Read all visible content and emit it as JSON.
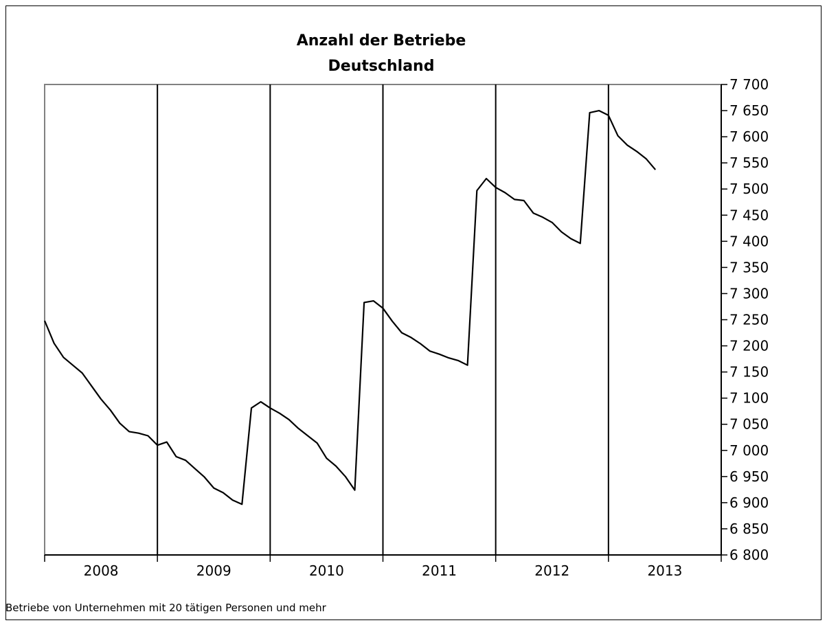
{
  "chart_data": {
    "type": "line",
    "title": "Anzahl der Betriebe",
    "subtitle": "Deutschland",
    "note": "Betriebe von Unternehmen mit 20 tätigen Personen und mehr",
    "xlabel": "",
    "ylabel": "",
    "ylim": [
      6800,
      7700
    ],
    "y_ticks": [
      "6 800",
      "6 850",
      "6 900",
      "6 950",
      "7 000",
      "7 050",
      "7 100",
      "7 150",
      "7 200",
      "7 250",
      "7 300",
      "7 350",
      "7 400",
      "7 450",
      "7 500",
      "7 550",
      "7 600",
      "7 650",
      "7 700"
    ],
    "y_axis_position": "right",
    "year_labels": [
      "2008",
      "2009",
      "2010",
      "2011",
      "2012",
      "2013"
    ],
    "months_per_year": 12,
    "grid": "vertical lines at each year boundary",
    "line_color": "#000000",
    "series": [
      {
        "values": [
          7248,
          7205,
          7178,
          7163,
          7148,
          7123,
          7098,
          7077,
          7052,
          7036,
          7033,
          7028,
          7010,
          7016,
          6988,
          6981,
          6965,
          6949,
          6928,
          6919,
          6905,
          6897,
          7081,
          7093,
          7081,
          7071,
          7059,
          7042,
          7028,
          7014,
          6985,
          6970,
          6950,
          6924,
          7283,
          7286,
          7272,
          7247,
          7225,
          7216,
          7204,
          7190,
          7184,
          7177,
          7172,
          7163,
          7497,
          7520,
          7503,
          7493,
          7480,
          7478,
          7454,
          7446,
          7436,
          7418,
          7405,
          7396,
          7646,
          7650,
          7641,
          7602,
          7584,
          7572,
          7558,
          7537
        ]
      }
    ]
  }
}
